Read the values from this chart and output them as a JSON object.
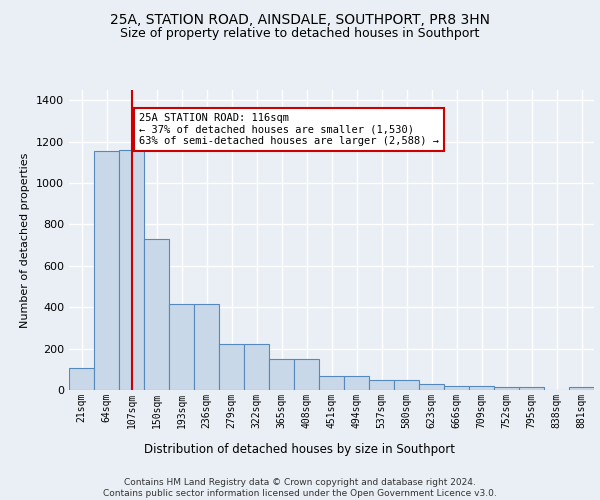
{
  "title1": "25A, STATION ROAD, AINSDALE, SOUTHPORT, PR8 3HN",
  "title2": "Size of property relative to detached houses in Southport",
  "xlabel": "Distribution of detached houses by size in Southport",
  "ylabel": "Number of detached properties",
  "bin_labels": [
    "21sqm",
    "64sqm",
    "107sqm",
    "150sqm",
    "193sqm",
    "236sqm",
    "279sqm",
    "322sqm",
    "365sqm",
    "408sqm",
    "451sqm",
    "494sqm",
    "537sqm",
    "580sqm",
    "623sqm",
    "666sqm",
    "709sqm",
    "752sqm",
    "795sqm",
    "838sqm",
    "881sqm"
  ],
  "bar_values": [
    105,
    1155,
    1160,
    730,
    415,
    415,
    220,
    220,
    150,
    150,
    70,
    70,
    50,
    50,
    30,
    20,
    20,
    15,
    15,
    0,
    15
  ],
  "bar_color": "#c8d8e8",
  "bar_edge_color": "#5588bb",
  "red_line_x": 2,
  "red_line_color": "#cc0000",
  "annotation_text": "25A STATION ROAD: 116sqm\n← 37% of detached houses are smaller (1,530)\n63% of semi-detached houses are larger (2,588) →",
  "annotation_box_color": "#ffffff",
  "annotation_box_edge": "#cc0000",
  "ylim": [
    0,
    1450
  ],
  "yticks": [
    0,
    200,
    400,
    600,
    800,
    1000,
    1200,
    1400
  ],
  "footer": "Contains HM Land Registry data © Crown copyright and database right 2024.\nContains public sector information licensed under the Open Government Licence v3.0.",
  "bg_color": "#eaeff5",
  "grid_color": "#ffffff"
}
